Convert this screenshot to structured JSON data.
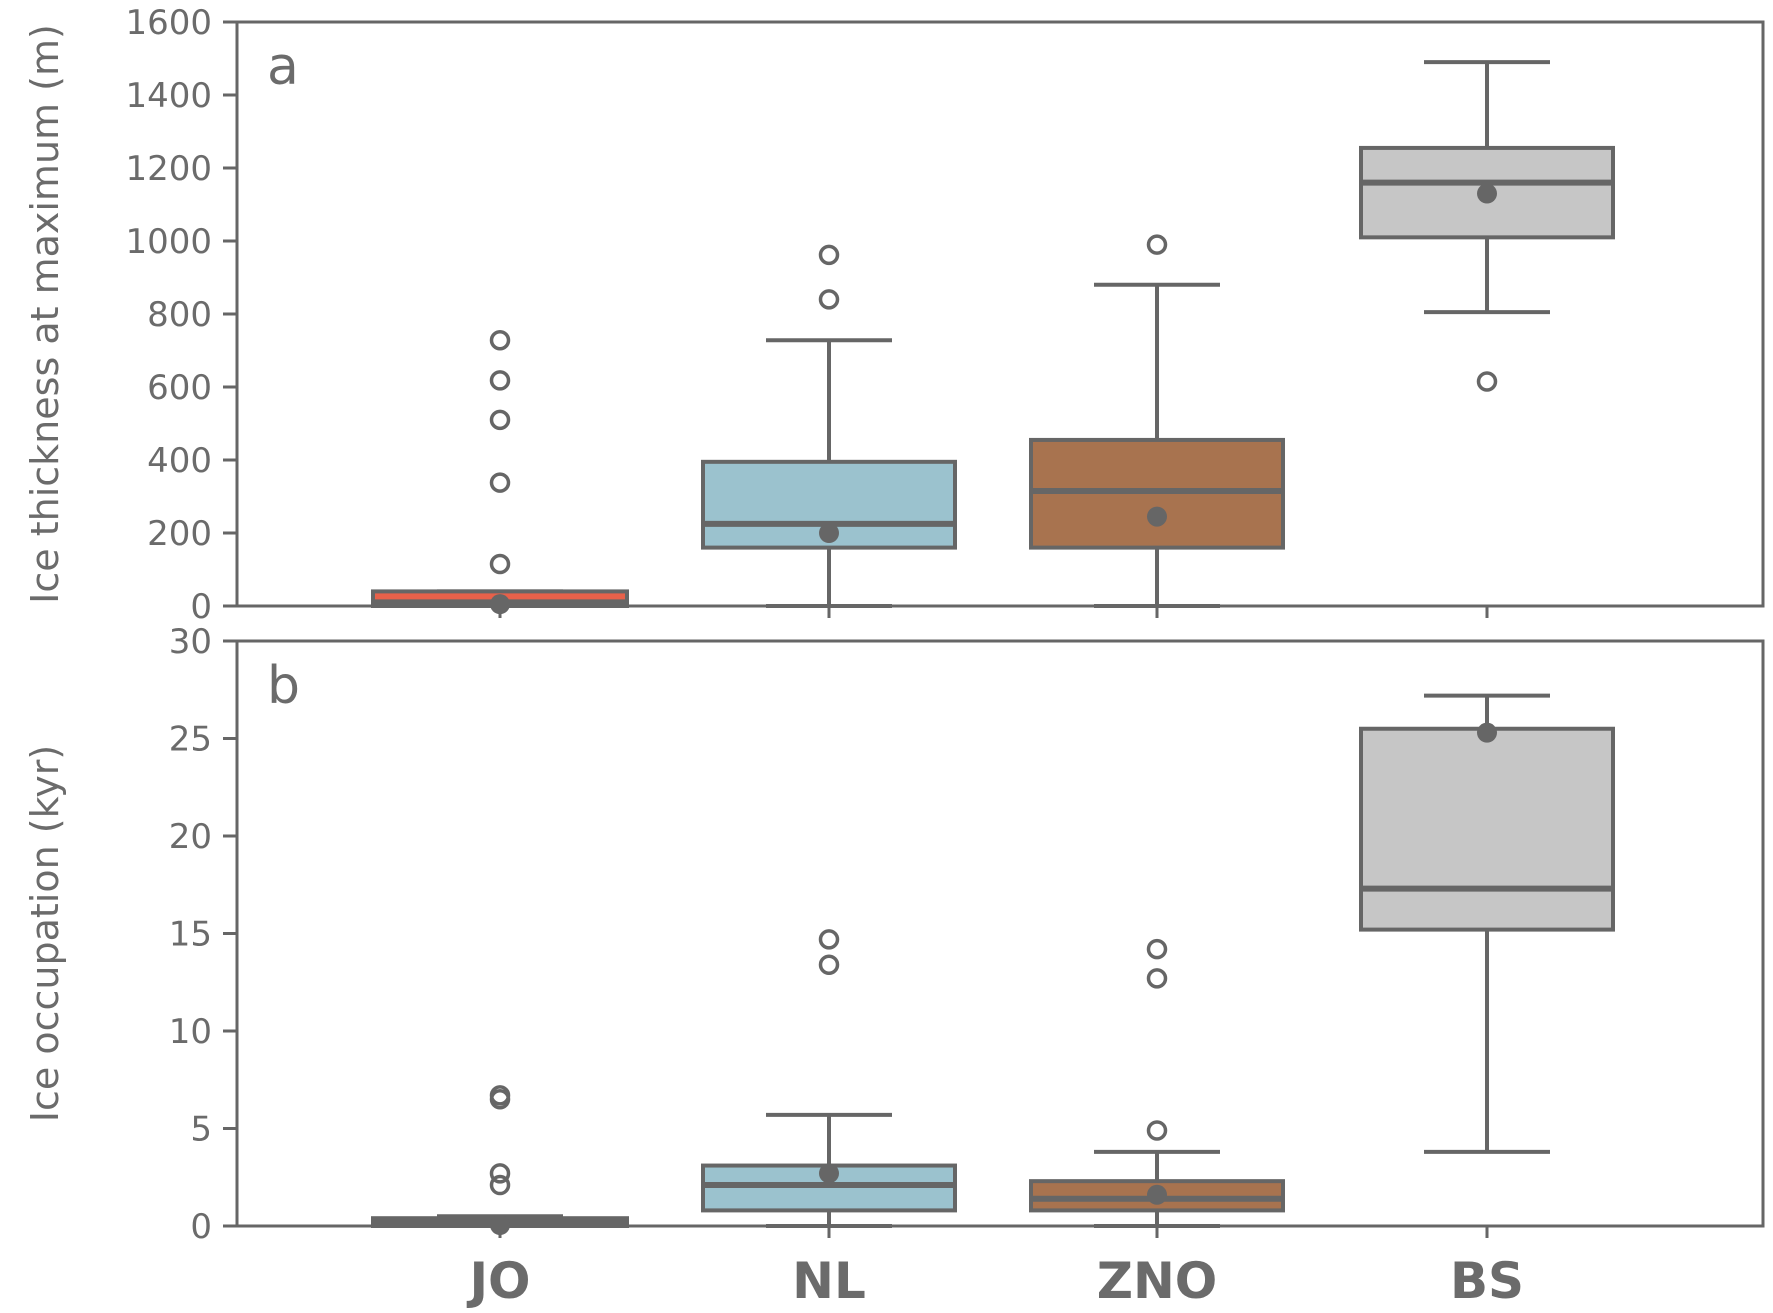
{
  "chart_data": [
    {
      "type": "box",
      "panel_label": "a",
      "ylabel": "Ice thickness at maximum (m)",
      "ylim": [
        0,
        1600
      ],
      "yticks": [
        0,
        200,
        400,
        600,
        800,
        1000,
        1200,
        1400,
        1600
      ],
      "categories": [
        "JO",
        "NL",
        "ZNO",
        "BS"
      ],
      "colors": [
        "#e8614a",
        "#9bc2ce",
        "#a8734f",
        "#c6c6c6"
      ],
      "boxes": [
        {
          "category": "JO",
          "whisker_low": 0,
          "q1": 0,
          "median": 10,
          "q3": 40,
          "whisker_high": 40,
          "mean": 5,
          "outliers": [
            115,
            338,
            510,
            618,
            728
          ]
        },
        {
          "category": "NL",
          "whisker_low": 0,
          "q1": 160,
          "median": 225,
          "q3": 395,
          "whisker_high": 728,
          "mean": 200,
          "outliers": [
            840,
            962
          ]
        },
        {
          "category": "ZNO",
          "whisker_low": 0,
          "q1": 160,
          "median": 315,
          "q3": 455,
          "whisker_high": 880,
          "mean": 245,
          "outliers": [
            990
          ]
        },
        {
          "category": "BS",
          "whisker_low": 805,
          "q1": 1010,
          "median": 1160,
          "q3": 1255,
          "whisker_high": 1490,
          "mean": 1130,
          "outliers": [
            615
          ]
        }
      ]
    },
    {
      "type": "box",
      "panel_label": "b",
      "ylabel": "Ice occupation (kyr)",
      "ylim": [
        0,
        30
      ],
      "yticks": [
        0,
        5,
        10,
        15,
        20,
        25,
        30
      ],
      "categories": [
        "JO",
        "NL",
        "ZNO",
        "BS"
      ],
      "xtick_labels": [
        "JO",
        "NL",
        "ZNO",
        "BS"
      ],
      "colors": [
        "#e8614a",
        "#9bc2ce",
        "#a8734f",
        "#c6c6c6"
      ],
      "boxes": [
        {
          "category": "JO",
          "whisker_low": 0,
          "q1": 0,
          "median": 0.2,
          "q3": 0.4,
          "whisker_high": 0.5,
          "mean": 0.05,
          "outliers": [
            2.1,
            2.7,
            6.5,
            6.7
          ]
        },
        {
          "category": "NL",
          "whisker_low": 0,
          "q1": 0.8,
          "median": 2.1,
          "q3": 3.1,
          "whisker_high": 5.7,
          "mean": 2.7,
          "outliers": [
            13.4,
            14.7
          ]
        },
        {
          "category": "ZNO",
          "whisker_low": 0,
          "q1": 0.8,
          "median": 1.4,
          "q3": 2.3,
          "whisker_high": 3.8,
          "mean": 1.6,
          "outliers": [
            4.9,
            12.7,
            14.2
          ]
        },
        {
          "category": "BS",
          "whisker_low": 3.8,
          "q1": 15.2,
          "median": 17.3,
          "q3": 25.5,
          "whisker_high": 27.2,
          "mean": 25.3,
          "outliers": []
        }
      ]
    }
  ]
}
